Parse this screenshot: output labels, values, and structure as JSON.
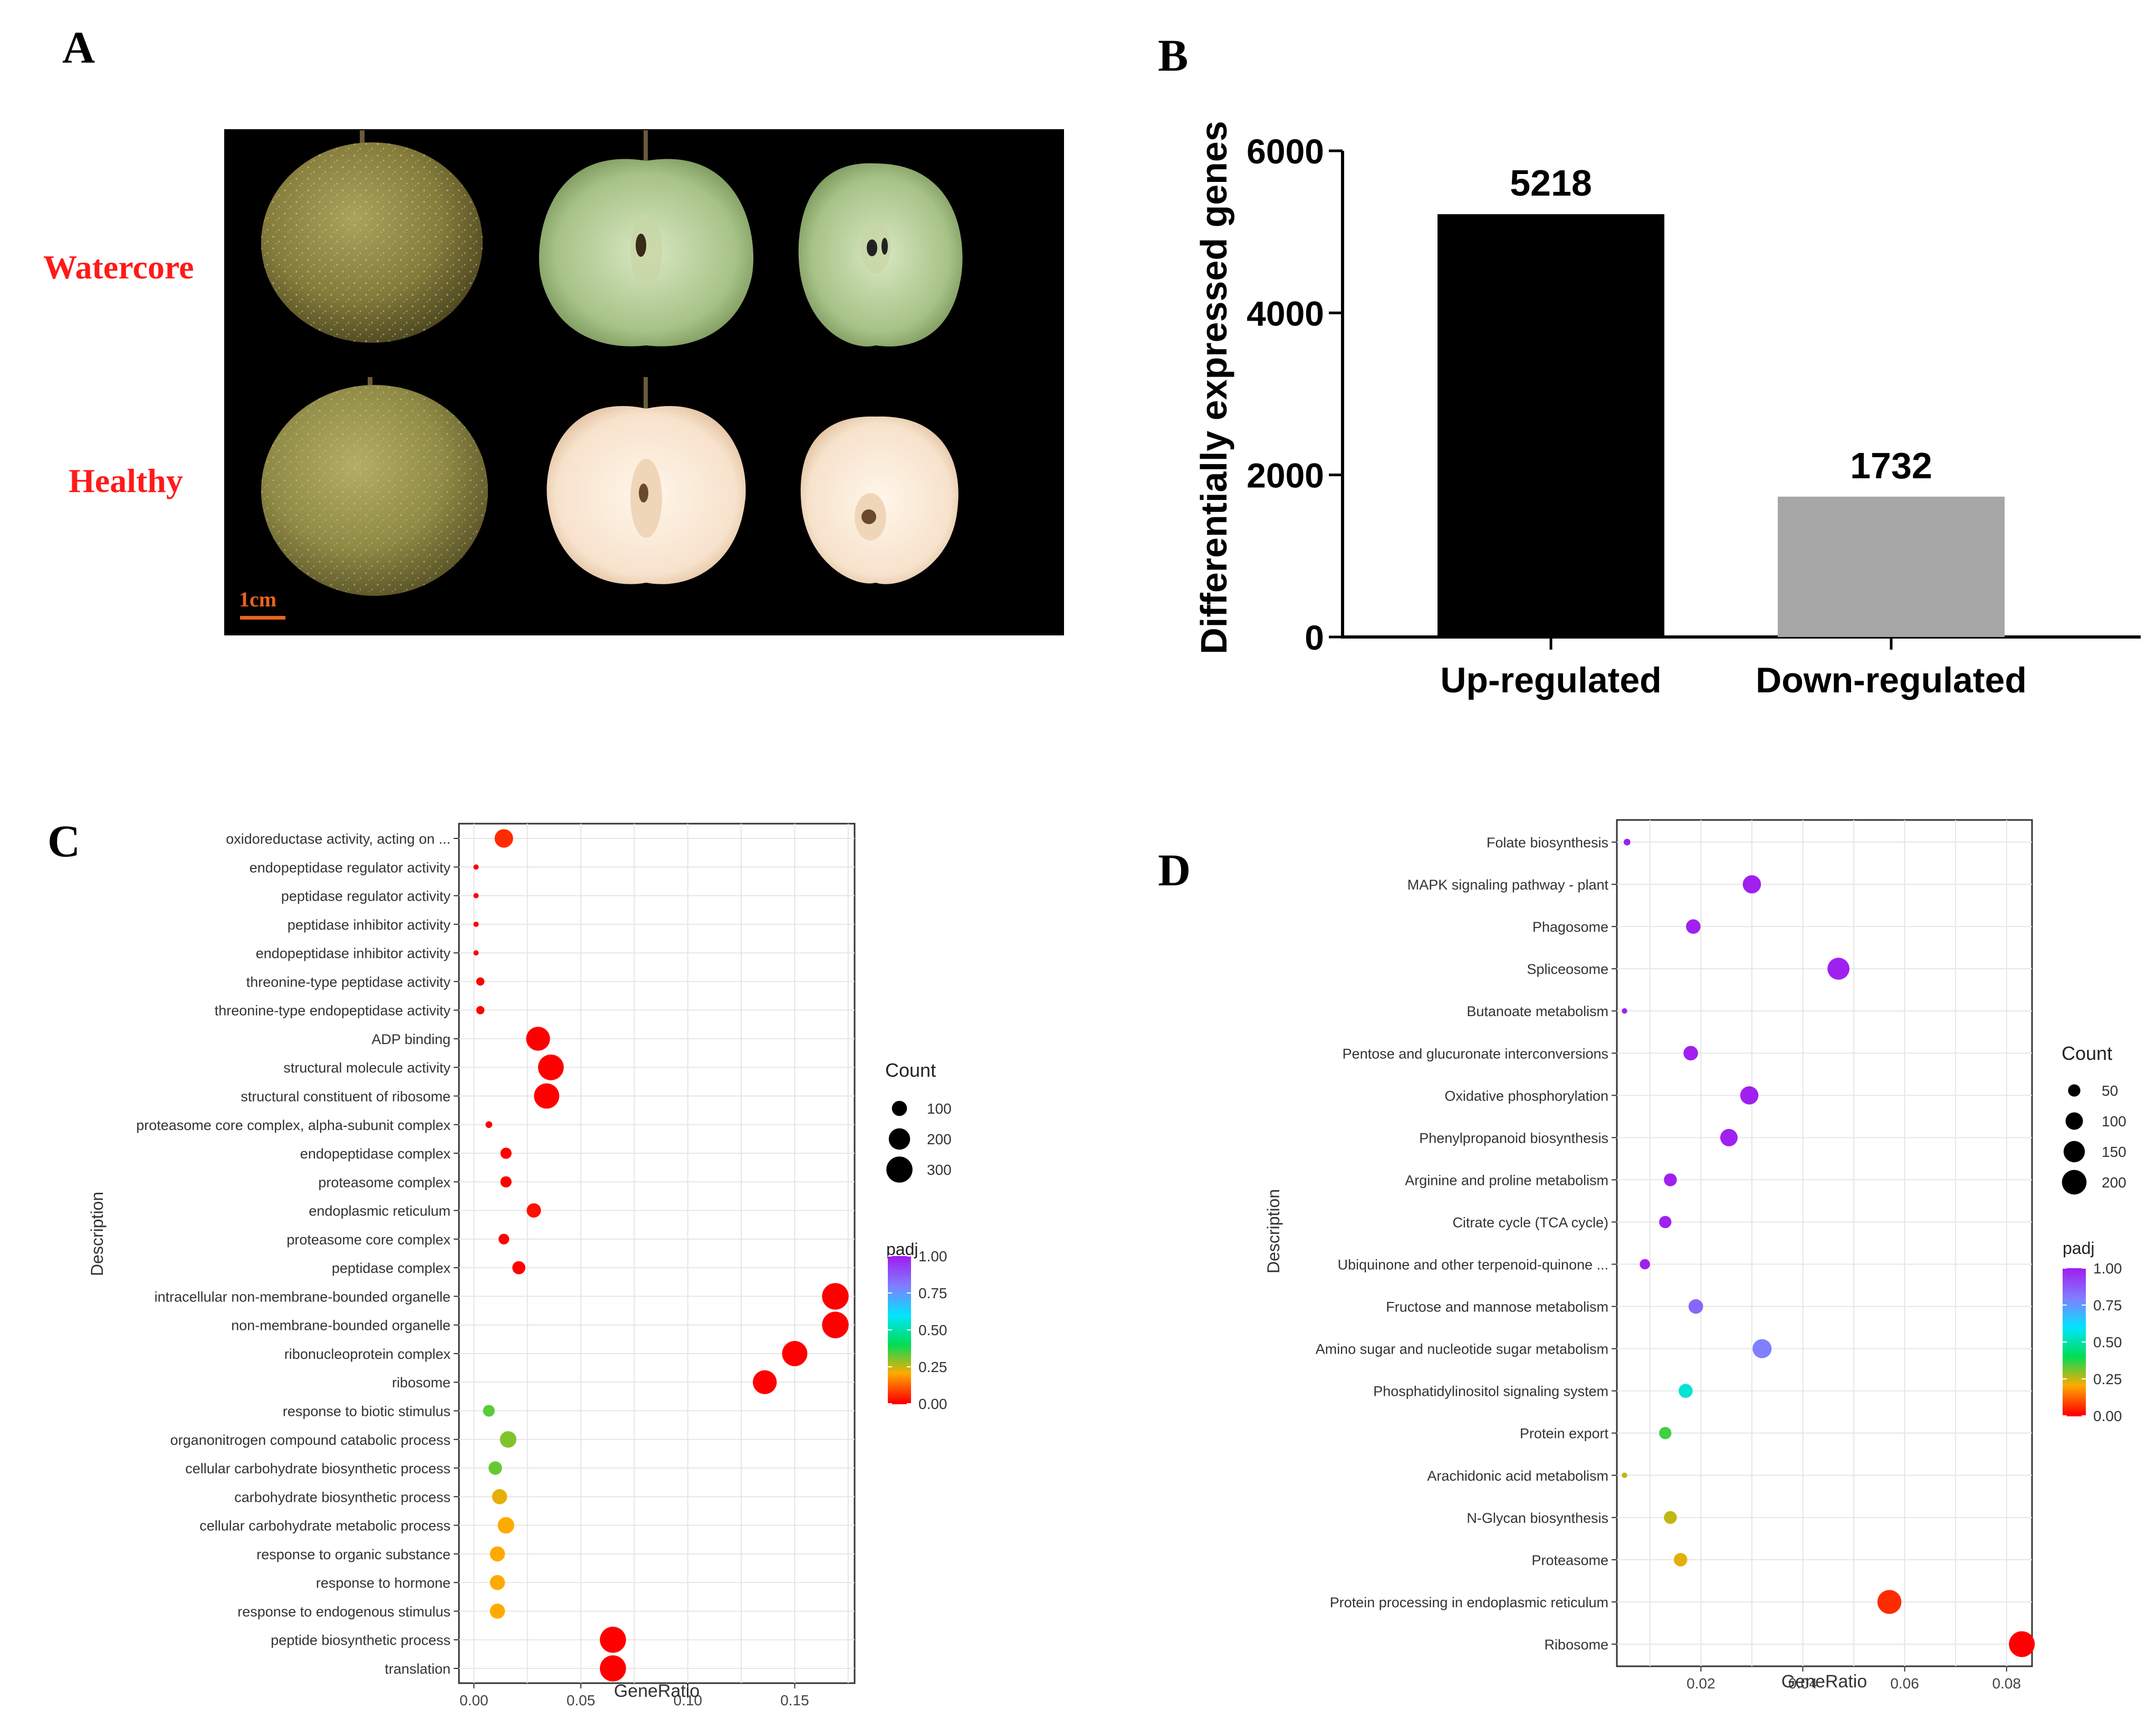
{
  "panels": {
    "a": {
      "letter": "A",
      "row1_label": "Watercore",
      "row2_label": "Healthy",
      "scale_label": "1cm"
    },
    "b": {
      "letter": "B"
    },
    "c": {
      "letter": "C"
    },
    "d": {
      "letter": "D"
    }
  },
  "colors": {
    "bar_up": "#000000",
    "bar_down": "#a6a6a6",
    "label_red": "#ff1a1a",
    "grid": "#e6e6e6",
    "padj_scale": [
      "#ff0000",
      "#ffaa00",
      "#00dd55",
      "#00e5ff",
      "#7f7fff",
      "#a020f0"
    ]
  },
  "chart_data": [
    {
      "id": "B",
      "type": "bar",
      "categories": [
        "Up-regulated",
        "Down-regulated"
      ],
      "values": [
        5218,
        1732
      ],
      "data_labels": [
        "5218",
        "1732"
      ],
      "ylabel": "Differentially expressed genes",
      "ylim": [
        0,
        6000
      ],
      "yticks": [
        "0",
        "2000",
        "4000",
        "6000"
      ],
      "grid": false
    },
    {
      "id": "C",
      "type": "scatter",
      "xlabel": "GeneRatio",
      "ylabel": "Description",
      "xlim": [
        -0.007,
        0.178
      ],
      "xticks": [
        0.0,
        0.05,
        0.1,
        0.15
      ],
      "xtick_labels": [
        "0.00",
        "0.05",
        "0.10",
        "0.15"
      ],
      "grid": true,
      "legend_position": "right",
      "size_legend": {
        "title": "Count",
        "values": [
          100,
          200,
          300
        ],
        "labels": [
          "100",
          "200",
          "300"
        ]
      },
      "color_legend": {
        "title": "padj",
        "labels": [
          "1.00",
          "0.75",
          "0.50",
          "0.25",
          "0.00"
        ]
      },
      "size_domain": [
        0,
        330
      ],
      "points": [
        {
          "label": "oxidoreductase activity, acting on ...",
          "x": 0.014,
          "count": 150,
          "padj": 0.05
        },
        {
          "label": "endopeptidase regulator activity",
          "x": 0.001,
          "count": 10,
          "padj": 0.0
        },
        {
          "label": "peptidase regulator activity",
          "x": 0.001,
          "count": 10,
          "padj": 0.0
        },
        {
          "label": "peptidase inhibitor activity",
          "x": 0.001,
          "count": 10,
          "padj": 0.0
        },
        {
          "label": "endopeptidase inhibitor activity",
          "x": 0.001,
          "count": 10,
          "padj": 0.0
        },
        {
          "label": "threonine-type peptidase activity",
          "x": 0.003,
          "count": 30,
          "padj": 0.0
        },
        {
          "label": "threonine-type endopeptidase activity",
          "x": 0.003,
          "count": 30,
          "padj": 0.0
        },
        {
          "label": "ADP binding",
          "x": 0.03,
          "count": 250,
          "padj": 0.0
        },
        {
          "label": "structural molecule activity",
          "x": 0.036,
          "count": 290,
          "padj": 0.0
        },
        {
          "label": "structural constituent of ribosome",
          "x": 0.034,
          "count": 280,
          "padj": 0.0
        },
        {
          "label": "proteasome core complex, alpha-subunit complex",
          "x": 0.007,
          "count": 20,
          "padj": 0.0
        },
        {
          "label": "endopeptidase complex",
          "x": 0.015,
          "count": 55,
          "padj": 0.0
        },
        {
          "label": "proteasome complex",
          "x": 0.015,
          "count": 55,
          "padj": 0.0
        },
        {
          "label": "endoplasmic reticulum",
          "x": 0.028,
          "count": 90,
          "padj": 0.02
        },
        {
          "label": "proteasome core complex",
          "x": 0.014,
          "count": 50,
          "padj": 0.0
        },
        {
          "label": "peptidase complex",
          "x": 0.021,
          "count": 75,
          "padj": 0.0
        },
        {
          "label": "intracellular non-membrane-bounded organelle",
          "x": 0.169,
          "count": 310,
          "padj": 0.0
        },
        {
          "label": "non-membrane-bounded organelle",
          "x": 0.169,
          "count": 310,
          "padj": 0.0
        },
        {
          "label": "ribonucleoprotein complex",
          "x": 0.15,
          "count": 280,
          "padj": 0.0
        },
        {
          "label": "ribosome",
          "x": 0.136,
          "count": 250,
          "padj": 0.0
        },
        {
          "label": "response to biotic stimulus",
          "x": 0.007,
          "count": 60,
          "padj": 0.33
        },
        {
          "label": "organonitrogen compound catabolic process",
          "x": 0.016,
          "count": 120,
          "padj": 0.3
        },
        {
          "label": "cellular carbohydrate biosynthetic process",
          "x": 0.01,
          "count": 80,
          "padj": 0.32
        },
        {
          "label": "carbohydrate biosynthetic process",
          "x": 0.012,
          "count": 100,
          "padj": 0.22
        },
        {
          "label": "cellular carbohydrate metabolic process",
          "x": 0.015,
          "count": 120,
          "padj": 0.2
        },
        {
          "label": "response to organic substance",
          "x": 0.011,
          "count": 100,
          "padj": 0.2
        },
        {
          "label": "response to hormone",
          "x": 0.011,
          "count": 100,
          "padj": 0.2
        },
        {
          "label": "response to endogenous stimulus",
          "x": 0.011,
          "count": 100,
          "padj": 0.2
        },
        {
          "label": "peptide biosynthetic process",
          "x": 0.065,
          "count": 300,
          "padj": 0.0
        },
        {
          "label": "translation",
          "x": 0.065,
          "count": 300,
          "padj": 0.0
        }
      ]
    },
    {
      "id": "D",
      "type": "scatter",
      "xlabel": "GeneRatio",
      "ylabel": "Description",
      "xlim": [
        0.0035,
        0.085
      ],
      "xticks": [
        0.02,
        0.04,
        0.06,
        0.08
      ],
      "xtick_labels": [
        "0.02",
        "0.04",
        "0.06",
        "0.08"
      ],
      "grid": true,
      "legend_position": "right",
      "size_legend": {
        "title": "Count",
        "values": [
          50,
          100,
          150,
          200
        ],
        "labels": [
          "50",
          "100",
          "150",
          "200"
        ]
      },
      "color_legend": {
        "title": "padj",
        "labels": [
          "1.00",
          "0.75",
          "0.50",
          "0.25",
          "0.00"
        ]
      },
      "size_domain": [
        0,
        230
      ],
      "points": [
        {
          "label": "Folate biosynthesis",
          "x": 0.0055,
          "count": 15,
          "padj": 1.0
        },
        {
          "label": "MAPK signaling pathway - plant",
          "x": 0.03,
          "count": 110,
          "padj": 1.0
        },
        {
          "label": "Phagosome",
          "x": 0.0185,
          "count": 70,
          "padj": 1.0
        },
        {
          "label": "Spliceosome",
          "x": 0.047,
          "count": 160,
          "padj": 1.0
        },
        {
          "label": "Butanoate metabolism",
          "x": 0.005,
          "count": 10,
          "padj": 1.0
        },
        {
          "label": "Pentose and glucuronate interconversions",
          "x": 0.018,
          "count": 70,
          "padj": 1.0
        },
        {
          "label": "Oxidative phosphorylation",
          "x": 0.0295,
          "count": 110,
          "padj": 1.0
        },
        {
          "label": "Phenylpropanoid biosynthesis",
          "x": 0.0255,
          "count": 100,
          "padj": 1.0
        },
        {
          "label": "Arginine and proline metabolism",
          "x": 0.014,
          "count": 55,
          "padj": 1.0
        },
        {
          "label": "Citrate cycle (TCA cycle)",
          "x": 0.013,
          "count": 50,
          "padj": 1.0
        },
        {
          "label": "Ubiquinone and other terpenoid-quinone ...",
          "x": 0.009,
          "count": 35,
          "padj": 1.0
        },
        {
          "label": "Fructose and mannose metabolism",
          "x": 0.019,
          "count": 70,
          "padj": 0.85
        },
        {
          "label": "Amino sugar and nucleotide sugar metabolism",
          "x": 0.032,
          "count": 120,
          "padj": 0.8
        },
        {
          "label": "Phosphatidylinositol signaling system",
          "x": 0.017,
          "count": 65,
          "padj": 0.55
        },
        {
          "label": "Protein export",
          "x": 0.013,
          "count": 50,
          "padj": 0.35
        },
        {
          "label": "Arachidonic acid metabolism",
          "x": 0.005,
          "count": 10,
          "padj": 0.25
        },
        {
          "label": "N-Glycan biosynthesis",
          "x": 0.014,
          "count": 55,
          "padj": 0.25
        },
        {
          "label": "Proteasome",
          "x": 0.016,
          "count": 60,
          "padj": 0.22
        },
        {
          "label": "Protein processing in endoplasmic reticulum",
          "x": 0.057,
          "count": 190,
          "padj": 0.05
        },
        {
          "label": "Ribosome",
          "x": 0.083,
          "count": 220,
          "padj": 0.0
        }
      ]
    }
  ]
}
